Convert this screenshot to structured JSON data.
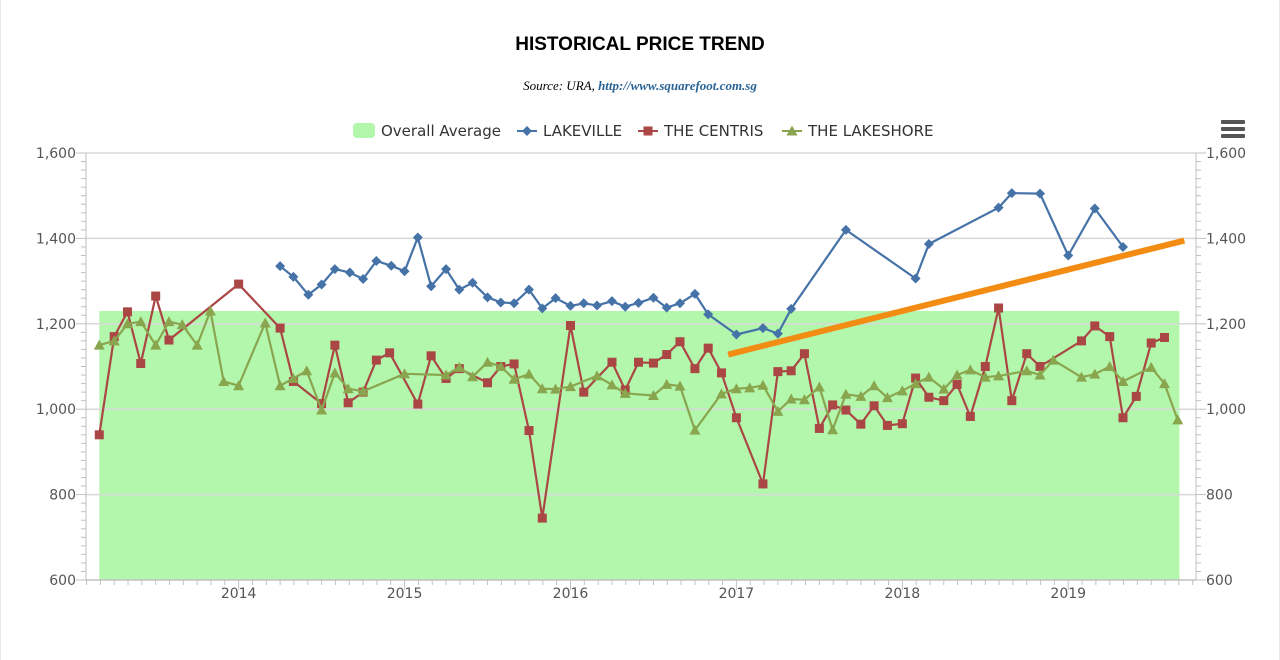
{
  "header": {
    "title": "HISTORICAL PRICE TREND",
    "subtitle_prefix": "Source: URA, ",
    "subtitle_link": "http://www.squarefoot.com.sg"
  },
  "menu": {
    "icon": "hamburger-menu-icon"
  },
  "chart_data": {
    "type": "line",
    "title": "HISTORICAL PRICE TREND",
    "subtitle": "Source: URA, http://www.squarefoot.com.sg",
    "xlabel": "",
    "ylabel": "",
    "xlim": [
      2013.08,
      2019.77
    ],
    "ylim": [
      600,
      1600
    ],
    "y_ticks": [
      600,
      800,
      1000,
      1200,
      1400,
      1600
    ],
    "y_tick_labels": [
      "600",
      "800",
      "1,000",
      "1,200",
      "1,400",
      "1,600"
    ],
    "x_ticks": [
      2014,
      2015,
      2016,
      2017,
      2018,
      2019
    ],
    "x_tick_labels": [
      "2014",
      "2015",
      "2016",
      "2017",
      "2018",
      "2019"
    ],
    "axes": "left and right y-axes mirrored",
    "grid": "horizontal gridlines on",
    "legend_position": "top-center",
    "area": {
      "name": "Overall Average",
      "value": 1230,
      "x_start": 2013.16,
      "x_end": 2019.67,
      "color": "#b3f7ad"
    },
    "trend_line": {
      "from": [
        2016.95,
        1128
      ],
      "to": [
        2019.7,
        1395
      ],
      "color": "#f28c13"
    },
    "series": [
      {
        "name": "LAKEVILLE",
        "color": "#4572a7",
        "marker": "diamond",
        "points": [
          [
            2014.25,
            1335
          ],
          [
            2014.33,
            1310
          ],
          [
            2014.42,
            1268
          ],
          [
            2014.5,
            1292
          ],
          [
            2014.58,
            1328
          ],
          [
            2014.67,
            1320
          ],
          [
            2014.75,
            1305
          ],
          [
            2014.83,
            1347
          ],
          [
            2014.92,
            1336
          ],
          [
            2015.0,
            1323
          ],
          [
            2015.08,
            1402
          ],
          [
            2015.16,
            1288
          ],
          [
            2015.25,
            1328
          ],
          [
            2015.33,
            1280
          ],
          [
            2015.41,
            1296
          ],
          [
            2015.5,
            1262
          ],
          [
            2015.58,
            1250
          ],
          [
            2015.66,
            1248
          ],
          [
            2015.75,
            1280
          ],
          [
            2015.83,
            1236
          ],
          [
            2015.91,
            1260
          ],
          [
            2016.0,
            1242
          ],
          [
            2016.08,
            1248
          ],
          [
            2016.16,
            1243
          ],
          [
            2016.25,
            1253
          ],
          [
            2016.33,
            1240
          ],
          [
            2016.41,
            1249
          ],
          [
            2016.5,
            1261
          ],
          [
            2016.58,
            1238
          ],
          [
            2016.66,
            1248
          ],
          [
            2016.75,
            1270
          ],
          [
            2016.83,
            1222
          ],
          [
            2017.0,
            1175
          ],
          [
            2017.16,
            1190
          ],
          [
            2017.25,
            1177
          ],
          [
            2017.33,
            1235
          ],
          [
            2017.66,
            1420
          ],
          [
            2018.08,
            1306
          ],
          [
            2018.16,
            1387
          ],
          [
            2018.58,
            1472
          ],
          [
            2018.66,
            1506
          ],
          [
            2018.83,
            1505
          ],
          [
            2019.0,
            1360
          ],
          [
            2019.16,
            1470
          ],
          [
            2019.33,
            1380
          ]
        ]
      },
      {
        "name": "THE CENTRIS",
        "color": "#aa4643",
        "marker": "square",
        "points": [
          [
            2013.16,
            940
          ],
          [
            2013.25,
            1170
          ],
          [
            2013.33,
            1228
          ],
          [
            2013.41,
            1107
          ],
          [
            2013.5,
            1265
          ],
          [
            2013.58,
            1162
          ],
          [
            2014.0,
            1293
          ],
          [
            2014.25,
            1190
          ],
          [
            2014.33,
            1065
          ],
          [
            2014.5,
            1013
          ],
          [
            2014.58,
            1150
          ],
          [
            2014.66,
            1015
          ],
          [
            2014.75,
            1040
          ],
          [
            2014.83,
            1115
          ],
          [
            2014.91,
            1132
          ],
          [
            2015.08,
            1012
          ],
          [
            2015.16,
            1125
          ],
          [
            2015.25,
            1072
          ],
          [
            2015.33,
            1095
          ],
          [
            2015.5,
            1062
          ],
          [
            2015.58,
            1100
          ],
          [
            2015.66,
            1106
          ],
          [
            2015.75,
            950
          ],
          [
            2015.83,
            745
          ],
          [
            2016.0,
            1196
          ],
          [
            2016.08,
            1040
          ],
          [
            2016.25,
            1110
          ],
          [
            2016.33,
            1045
          ],
          [
            2016.41,
            1110
          ],
          [
            2016.5,
            1108
          ],
          [
            2016.58,
            1128
          ],
          [
            2016.66,
            1158
          ],
          [
            2016.75,
            1095
          ],
          [
            2016.83,
            1143
          ],
          [
            2016.91,
            1085
          ],
          [
            2017.0,
            980
          ],
          [
            2017.16,
            825
          ],
          [
            2017.25,
            1088
          ],
          [
            2017.33,
            1090
          ],
          [
            2017.41,
            1130
          ],
          [
            2017.5,
            955
          ],
          [
            2017.58,
            1010
          ],
          [
            2017.66,
            998
          ],
          [
            2017.75,
            965
          ],
          [
            2017.83,
            1008
          ],
          [
            2017.91,
            962
          ],
          [
            2018.0,
            966
          ],
          [
            2018.08,
            1073
          ],
          [
            2018.16,
            1028
          ],
          [
            2018.25,
            1020
          ],
          [
            2018.33,
            1058
          ],
          [
            2018.41,
            983
          ],
          [
            2018.5,
            1100
          ],
          [
            2018.58,
            1237
          ],
          [
            2018.66,
            1020
          ],
          [
            2018.75,
            1130
          ],
          [
            2018.83,
            1100
          ],
          [
            2019.08,
            1160
          ],
          [
            2019.16,
            1195
          ],
          [
            2019.25,
            1170
          ],
          [
            2019.33,
            980
          ],
          [
            2019.41,
            1030
          ],
          [
            2019.5,
            1155
          ],
          [
            2019.58,
            1168
          ]
        ]
      },
      {
        "name": "THE LAKESHORE",
        "color": "#89a54e",
        "marker": "triangle",
        "points": [
          [
            2013.16,
            1150
          ],
          [
            2013.25,
            1160
          ],
          [
            2013.33,
            1200
          ],
          [
            2013.41,
            1205
          ],
          [
            2013.5,
            1150
          ],
          [
            2013.58,
            1205
          ],
          [
            2013.66,
            1198
          ],
          [
            2013.75,
            1150
          ],
          [
            2013.83,
            1230
          ],
          [
            2013.91,
            1065
          ],
          [
            2014.0,
            1055
          ],
          [
            2014.16,
            1202
          ],
          [
            2014.25,
            1055
          ],
          [
            2014.33,
            1072
          ],
          [
            2014.41,
            1090
          ],
          [
            2014.5,
            998
          ],
          [
            2014.58,
            1085
          ],
          [
            2014.66,
            1048
          ],
          [
            2014.75,
            1042
          ],
          [
            2015.0,
            1083
          ],
          [
            2015.25,
            1080
          ],
          [
            2015.33,
            1098
          ],
          [
            2015.41,
            1076
          ],
          [
            2015.5,
            1110
          ],
          [
            2015.58,
            1100
          ],
          [
            2015.66,
            1070
          ],
          [
            2015.75,
            1082
          ],
          [
            2015.83,
            1048
          ],
          [
            2015.91,
            1047
          ],
          [
            2016.0,
            1053
          ],
          [
            2016.16,
            1078
          ],
          [
            2016.25,
            1057
          ],
          [
            2016.33,
            1037
          ],
          [
            2016.5,
            1032
          ],
          [
            2016.58,
            1058
          ],
          [
            2016.66,
            1054
          ],
          [
            2016.75,
            951
          ],
          [
            2016.91,
            1036
          ],
          [
            2017.0,
            1048
          ],
          [
            2017.08,
            1050
          ],
          [
            2017.16,
            1056
          ],
          [
            2017.25,
            995
          ],
          [
            2017.33,
            1024
          ],
          [
            2017.41,
            1022
          ],
          [
            2017.5,
            1052
          ],
          [
            2017.58,
            952
          ],
          [
            2017.66,
            1035
          ],
          [
            2017.75,
            1030
          ],
          [
            2017.83,
            1055
          ],
          [
            2017.91,
            1027
          ],
          [
            2018.0,
            1043
          ],
          [
            2018.08,
            1060
          ],
          [
            2018.16,
            1075
          ],
          [
            2018.25,
            1047
          ],
          [
            2018.33,
            1080
          ],
          [
            2018.41,
            1092
          ],
          [
            2018.5,
            1075
          ],
          [
            2018.58,
            1078
          ],
          [
            2018.75,
            1090
          ],
          [
            2018.83,
            1080
          ],
          [
            2018.91,
            1115
          ],
          [
            2019.08,
            1075
          ],
          [
            2019.16,
            1082
          ],
          [
            2019.25,
            1100
          ],
          [
            2019.33,
            1065
          ],
          [
            2019.5,
            1098
          ],
          [
            2019.58,
            1060
          ],
          [
            2019.66,
            975
          ]
        ]
      }
    ]
  }
}
